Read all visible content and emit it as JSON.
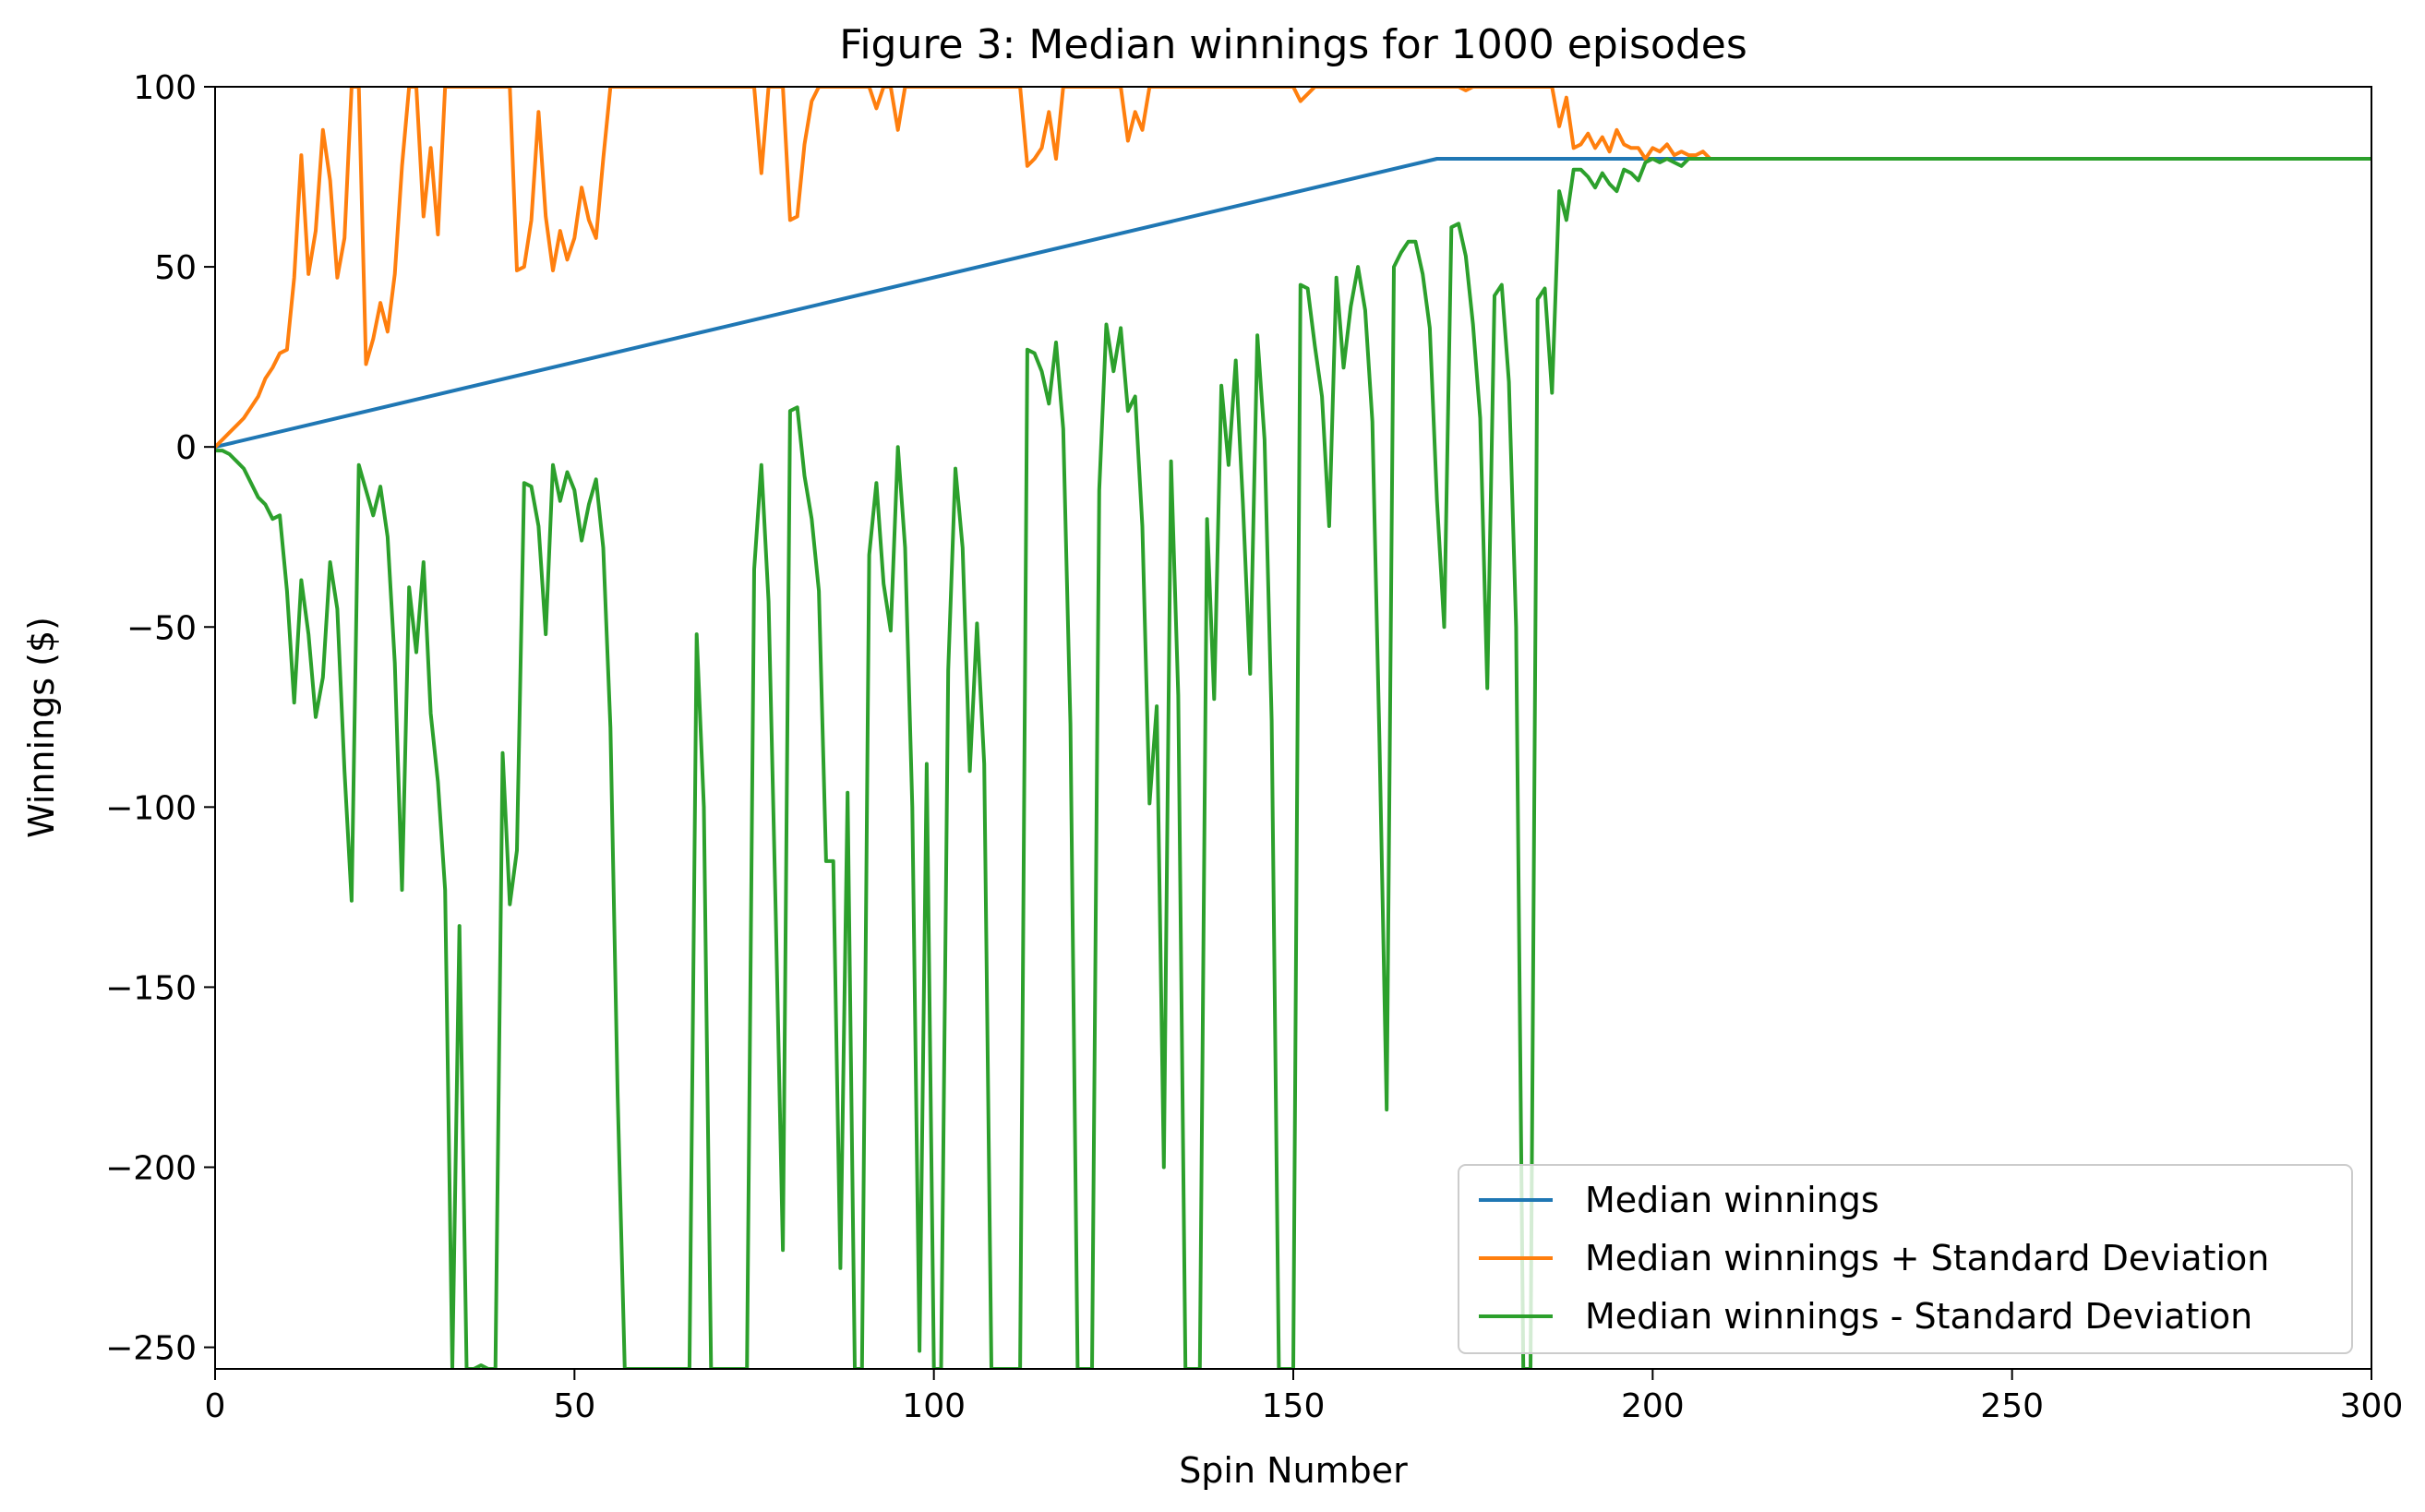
{
  "chart_data": {
    "type": "line",
    "title": "Figure 3: Median winnings for 1000 episodes",
    "xlabel": "Spin Number",
    "ylabel": "Winnings ($)",
    "xlim": [
      0,
      300
    ],
    "ylim": [
      -256,
      100
    ],
    "xticks": [
      0,
      50,
      100,
      150,
      200,
      250,
      300
    ],
    "xtick_labels": [
      "0",
      "50",
      "100",
      "150",
      "200",
      "250",
      "300"
    ],
    "yticks": [
      100,
      50,
      0,
      -50,
      -100,
      -150,
      -200,
      -250
    ],
    "ytick_labels": [
      "100",
      "50",
      "0",
      "−50",
      "−100",
      "−150",
      "−200",
      "−250"
    ],
    "grid": false,
    "legend_position": "lower-right",
    "series": [
      {
        "name": "Median winnings",
        "color": "#1f77b4",
        "points": [
          [
            0,
            0
          ],
          [
            170,
            80
          ],
          [
            300,
            80
          ]
        ]
      },
      {
        "name": "Median winnings + Standard Deviation",
        "color": "#ff7f0e",
        "points": [
          [
            0,
            0
          ],
          [
            1,
            2
          ],
          [
            2,
            4
          ],
          [
            3,
            6
          ],
          [
            4,
            8
          ],
          [
            5,
            11
          ],
          [
            6,
            14
          ],
          [
            7,
            19
          ],
          [
            8,
            22
          ],
          [
            9,
            26
          ],
          [
            10,
            27
          ],
          [
            11,
            47
          ],
          [
            12,
            81
          ],
          [
            13,
            48
          ],
          [
            14,
            60
          ],
          [
            15,
            88
          ],
          [
            16,
            74
          ],
          [
            17,
            47
          ],
          [
            18,
            58
          ],
          [
            19,
            100
          ],
          [
            20,
            100
          ],
          [
            21,
            23
          ],
          [
            22,
            30
          ],
          [
            23,
            40
          ],
          [
            24,
            32
          ],
          [
            25,
            48
          ],
          [
            26,
            78
          ],
          [
            27,
            100
          ],
          [
            28,
            100
          ],
          [
            29,
            64
          ],
          [
            30,
            83
          ],
          [
            31,
            59
          ],
          [
            32,
            100
          ],
          [
            33,
            100
          ],
          [
            41,
            100
          ],
          [
            42,
            49
          ],
          [
            43,
            50
          ],
          [
            44,
            63
          ],
          [
            45,
            93
          ],
          [
            46,
            64
          ],
          [
            47,
            49
          ],
          [
            48,
            60
          ],
          [
            49,
            52
          ],
          [
            50,
            58
          ],
          [
            51,
            72
          ],
          [
            52,
            63
          ],
          [
            53,
            58
          ],
          [
            54,
            80
          ],
          [
            55,
            100
          ],
          [
            75,
            100
          ],
          [
            76,
            76
          ],
          [
            77,
            100
          ],
          [
            79,
            100
          ],
          [
            80,
            63
          ],
          [
            81,
            64
          ],
          [
            82,
            84
          ],
          [
            83,
            96
          ],
          [
            84,
            100
          ],
          [
            91,
            100
          ],
          [
            92,
            94
          ],
          [
            93,
            100
          ],
          [
            94,
            100
          ],
          [
            95,
            88
          ],
          [
            96,
            100
          ],
          [
            112,
            100
          ],
          [
            113,
            78
          ],
          [
            114,
            80
          ],
          [
            115,
            83
          ],
          [
            116,
            93
          ],
          [
            117,
            80
          ],
          [
            118,
            100
          ],
          [
            126,
            100
          ],
          [
            127,
            85
          ],
          [
            128,
            93
          ],
          [
            129,
            88
          ],
          [
            130,
            100
          ],
          [
            150,
            100
          ],
          [
            151,
            96
          ],
          [
            152,
            98
          ],
          [
            153,
            100
          ],
          [
            160,
            100
          ],
          [
            161,
            100
          ],
          [
            172,
            100
          ],
          [
            173,
            100
          ],
          [
            174,
            99
          ],
          [
            175,
            100
          ],
          [
            185,
            100
          ],
          [
            186,
            100
          ],
          [
            187,
            89
          ],
          [
            188,
            97
          ],
          [
            189,
            83
          ],
          [
            190,
            84
          ],
          [
            191,
            87
          ],
          [
            192,
            83
          ],
          [
            193,
            86
          ],
          [
            194,
            82
          ],
          [
            195,
            88
          ],
          [
            196,
            84
          ],
          [
            197,
            83
          ],
          [
            198,
            83
          ],
          [
            199,
            80
          ],
          [
            200,
            83
          ],
          [
            201,
            82
          ],
          [
            202,
            84
          ],
          [
            203,
            81
          ],
          [
            204,
            82
          ],
          [
            205,
            81
          ],
          [
            206,
            81
          ],
          [
            207,
            82
          ],
          [
            208,
            80
          ]
        ]
      },
      {
        "name": "Median winnings - Standard Deviation",
        "color": "#2ca02c",
        "points": [
          [
            0,
            -1
          ],
          [
            1,
            -1
          ],
          [
            2,
            -2
          ],
          [
            3,
            -4
          ],
          [
            4,
            -6
          ],
          [
            5,
            -10
          ],
          [
            6,
            -14
          ],
          [
            7,
            -16
          ],
          [
            8,
            -20
          ],
          [
            9,
            -19
          ],
          [
            10,
            -40
          ],
          [
            11,
            -71
          ],
          [
            12,
            -37
          ],
          [
            13,
            -52
          ],
          [
            14,
            -75
          ],
          [
            15,
            -64
          ],
          [
            16,
            -32
          ],
          [
            17,
            -45
          ],
          [
            18,
            -90
          ],
          [
            19,
            -126
          ],
          [
            20,
            -5
          ],
          [
            21,
            -12
          ],
          [
            22,
            -19
          ],
          [
            23,
            -11
          ],
          [
            24,
            -25
          ],
          [
            25,
            -60
          ],
          [
            26,
            -123
          ],
          [
            27,
            -39
          ],
          [
            28,
            -57
          ],
          [
            29,
            -32
          ],
          [
            30,
            -74
          ],
          [
            31,
            -93
          ],
          [
            32,
            -123
          ],
          [
            33,
            -256
          ],
          [
            34,
            -133
          ],
          [
            35,
            -256
          ],
          [
            36,
            -256
          ],
          [
            37,
            -255
          ],
          [
            38,
            -256
          ],
          [
            39,
            -256
          ],
          [
            40,
            -85
          ],
          [
            41,
            -127
          ],
          [
            42,
            -112
          ],
          [
            43,
            -10
          ],
          [
            44,
            -11
          ],
          [
            45,
            -22
          ],
          [
            46,
            -52
          ],
          [
            47,
            -5
          ],
          [
            48,
            -15
          ],
          [
            49,
            -7
          ],
          [
            50,
            -12
          ],
          [
            51,
            -26
          ],
          [
            52,
            -16
          ],
          [
            53,
            -9
          ],
          [
            54,
            -28
          ],
          [
            55,
            -78
          ],
          [
            56,
            -180
          ],
          [
            57,
            -256
          ],
          [
            66,
            -256
          ],
          [
            67,
            -52
          ],
          [
            68,
            -100
          ],
          [
            69,
            -256
          ],
          [
            74,
            -256
          ],
          [
            75,
            -34
          ],
          [
            76,
            -5
          ],
          [
            77,
            -43
          ],
          [
            78,
            -130
          ],
          [
            79,
            -223
          ],
          [
            80,
            10
          ],
          [
            81,
            11
          ],
          [
            82,
            -8
          ],
          [
            83,
            -20
          ],
          [
            84,
            -40
          ],
          [
            85,
            -115
          ],
          [
            86,
            -115
          ],
          [
            87,
            -228
          ],
          [
            88,
            -96
          ],
          [
            89,
            -256
          ],
          [
            90,
            -256
          ],
          [
            91,
            -30
          ],
          [
            92,
            -10
          ],
          [
            93,
            -38
          ],
          [
            94,
            -51
          ],
          [
            95,
            0
          ],
          [
            96,
            -28
          ],
          [
            97,
            -100
          ],
          [
            98,
            -251
          ],
          [
            99,
            -88
          ],
          [
            100,
            -256
          ],
          [
            101,
            -256
          ],
          [
            102,
            -62
          ],
          [
            103,
            -6
          ],
          [
            104,
            -28
          ],
          [
            105,
            -90
          ],
          [
            106,
            -49
          ],
          [
            107,
            -88
          ],
          [
            108,
            -256
          ],
          [
            112,
            -256
          ],
          [
            113,
            27
          ],
          [
            114,
            26
          ],
          [
            115,
            21
          ],
          [
            116,
            12
          ],
          [
            117,
            29
          ],
          [
            118,
            5
          ],
          [
            119,
            -77
          ],
          [
            120,
            -256
          ],
          [
            122,
            -256
          ],
          [
            123,
            -12
          ],
          [
            124,
            34
          ],
          [
            125,
            21
          ],
          [
            126,
            33
          ],
          [
            127,
            10
          ],
          [
            128,
            14
          ],
          [
            129,
            -22
          ],
          [
            130,
            -99
          ],
          [
            131,
            -72
          ],
          [
            132,
            -200
          ],
          [
            133,
            -4
          ],
          [
            134,
            -69
          ],
          [
            135,
            -256
          ],
          [
            137,
            -256
          ],
          [
            138,
            -20
          ],
          [
            139,
            -70
          ],
          [
            140,
            17
          ],
          [
            141,
            -5
          ],
          [
            142,
            24
          ],
          [
            143,
            -16
          ],
          [
            144,
            -63
          ],
          [
            145,
            31
          ],
          [
            146,
            2
          ],
          [
            147,
            -76
          ],
          [
            148,
            -256
          ],
          [
            150,
            -256
          ],
          [
            151,
            45
          ],
          [
            152,
            44
          ],
          [
            153,
            28
          ],
          [
            154,
            14
          ],
          [
            155,
            -22
          ],
          [
            156,
            47
          ],
          [
            157,
            22
          ],
          [
            158,
            39
          ],
          [
            159,
            50
          ],
          [
            160,
            38
          ],
          [
            161,
            7
          ],
          [
            162,
            -82
          ],
          [
            163,
            -184
          ],
          [
            164,
            50
          ],
          [
            165,
            54
          ],
          [
            166,
            57
          ],
          [
            167,
            57
          ],
          [
            168,
            48
          ],
          [
            169,
            33
          ],
          [
            170,
            -15
          ],
          [
            171,
            -50
          ],
          [
            172,
            61
          ],
          [
            173,
            62
          ],
          [
            174,
            53
          ],
          [
            175,
            34
          ],
          [
            176,
            8
          ],
          [
            177,
            -67
          ],
          [
            178,
            42
          ],
          [
            179,
            45
          ],
          [
            180,
            18
          ],
          [
            181,
            -50
          ],
          [
            182,
            -256
          ],
          [
            183,
            -256
          ],
          [
            184,
            41
          ],
          [
            185,
            44
          ],
          [
            186,
            15
          ],
          [
            187,
            71
          ],
          [
            188,
            63
          ],
          [
            189,
            77
          ],
          [
            190,
            77
          ],
          [
            191,
            75
          ],
          [
            192,
            72
          ],
          [
            193,
            76
          ],
          [
            194,
            73
          ],
          [
            195,
            71
          ],
          [
            196,
            77
          ],
          [
            197,
            76
          ],
          [
            198,
            74
          ],
          [
            199,
            79
          ],
          [
            200,
            80
          ],
          [
            201,
            79
          ],
          [
            202,
            80
          ],
          [
            203,
            79
          ],
          [
            204,
            78
          ],
          [
            205,
            80
          ],
          [
            206,
            80
          ],
          [
            207,
            80
          ],
          [
            208,
            80
          ],
          [
            300,
            80
          ]
        ]
      }
    ]
  }
}
